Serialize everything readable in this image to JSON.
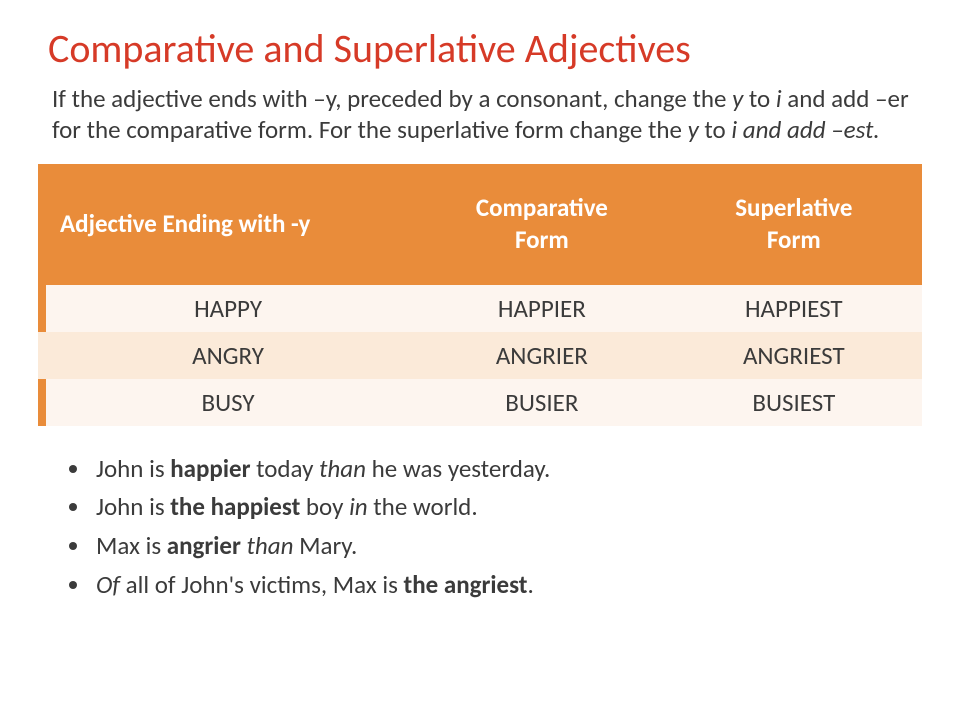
{
  "colors": {
    "title": "#d63a27",
    "body_text": "#3b3b3b",
    "table_header_bg": "#e98c3a",
    "table_header_text": "#ffffff",
    "row_odd_bg": "#fdf5ef",
    "row_even_bg": "#fbead9",
    "accent_bar": "#e98c3a",
    "bullet": "#3b3b3b"
  },
  "title": "Comparative and Superlative Adjectives",
  "rule": {
    "pre": "If the adjective ends with –y, preceded by a consonant, change the ",
    "i1": "y",
    "mid1": " to ",
    "i2": "i",
    "mid2": " and add –er for the comparative form. For the superlative form change the ",
    "i3": "y",
    "mid3": " to ",
    "i4": "i and add –est."
  },
  "table": {
    "headers": {
      "c1": "Adjective Ending with -y",
      "c2a": "Comparative",
      "c2b": "Form",
      "c3a": "Superlative",
      "c3b": "Form"
    },
    "rows": [
      {
        "base": "HAPPY",
        "comp": "HAPPIER",
        "sup": "HAPPIEST"
      },
      {
        "base": "ANGRY",
        "comp": "ANGRIER",
        "sup": "ANGRIEST"
      },
      {
        "base": "BUSY",
        "comp": "BUSIER",
        "sup": "BUSIEST"
      }
    ],
    "col_widths_pct": [
      43,
      28,
      29
    ]
  },
  "examples": [
    {
      "t0": "John is ",
      "b": "happier",
      "t1": " today ",
      "i": "than",
      "t2": " he was yesterday."
    },
    {
      "t0": "John is ",
      "b": "the happiest",
      "t1": " boy ",
      "i": "in",
      "t2": " the world."
    },
    {
      "t0": "Max is ",
      "b": "angrier",
      "t1": " ",
      "i": "than",
      "t2": " Mary."
    },
    {
      "t0": "",
      "i0": "Of",
      "t1": " all of John's victims, Max is ",
      "b": "the angriest",
      "t2": "."
    }
  ]
}
